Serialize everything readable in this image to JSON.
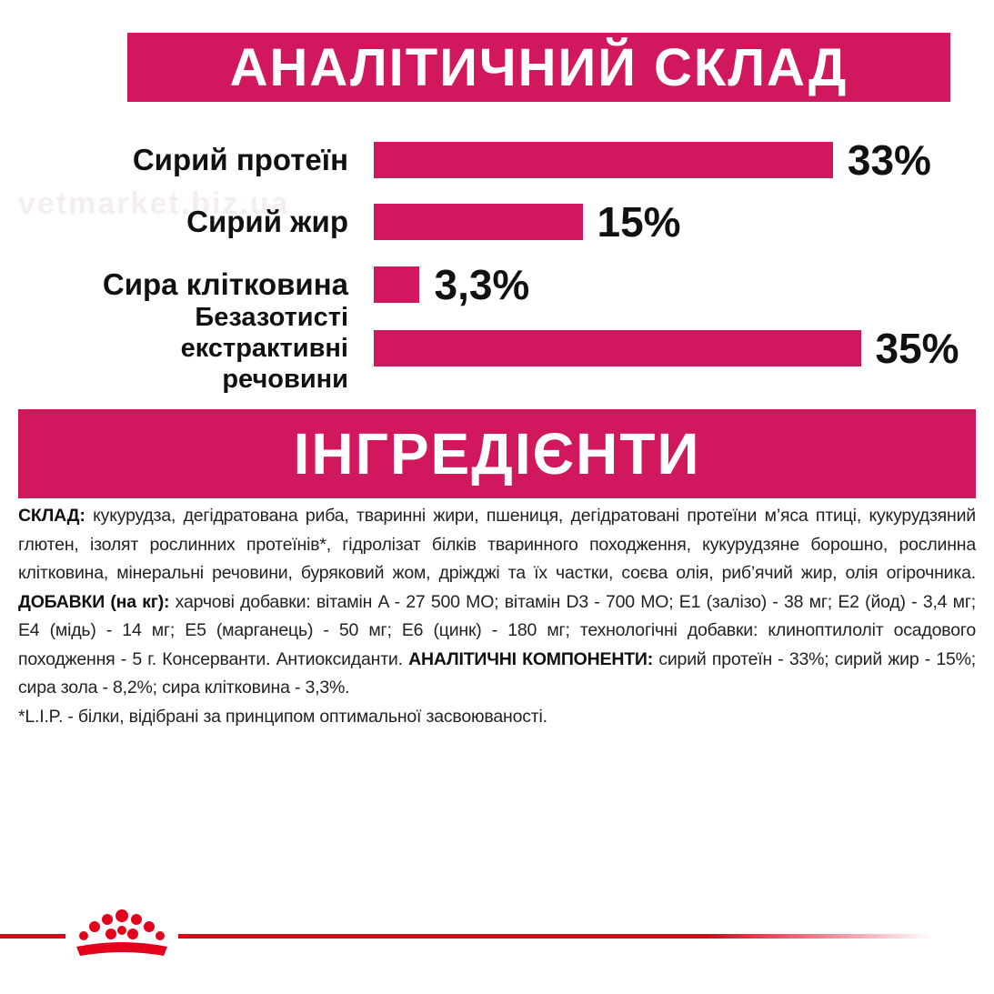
{
  "header": {
    "title": "АНАЛІТИЧНИЙ СКЛАД",
    "watermark": "vetmarket.biz.ua"
  },
  "chart_data": {
    "type": "bar",
    "orientation": "horizontal",
    "color": "#d1185e",
    "categories": [
      "Сирий протеїн",
      "Сирий жир",
      "Сира клітковина",
      "Безазотисті екстрактивні речовини"
    ],
    "values": [
      33,
      15,
      3.3,
      35
    ],
    "value_labels": [
      "33%",
      "15%",
      "3,3%",
      "35%"
    ]
  },
  "ingredients": {
    "title": "ІНГРЕДІЄНТИ",
    "composition_label": "СКЛАД:",
    "composition_text": "кукурудза, дегідратована риба, тваринні жири, пшениця, дегідратовані протеїни м’яса птиці, кукурудзяний глютен, ізолят рослинних протеїнів*, гідролізат білків тваринного походження, кукурудзяне борошно, рослинна клітковина, мінеральні речовини, буряковий жом, дріжджі та їх частки, соєва олія, риб’ячий жир, олія огірочника.",
    "additives_label": "ДОБАВКИ (на кг):",
    "additives_text": "харчові добавки: вітамін A - 27 500 МО; вітамін D3 - 700 МО; E1 (залізо) - 38 мг; E2 (йод) - 3,4 мг; E4 (мідь) - 14 мг; E5 (марганець) - 50 мг; E6 (цинк) - 180 мг; технологічні добавки: клиноптилоліт осадового походження - 5 г. Консерванти. Антиоксиданти.",
    "analytic_label": "АНАЛІТИЧНІ КОМПОНЕНТИ:",
    "analytic_text": "сирий протеїн - 33%; сирий жир - 15%; сира зола - 8,2%; сира клітковина - 3,3%.",
    "footnote": "*L.I.P. - білки, відібрані за принципом оптимальної засвоюваності."
  }
}
